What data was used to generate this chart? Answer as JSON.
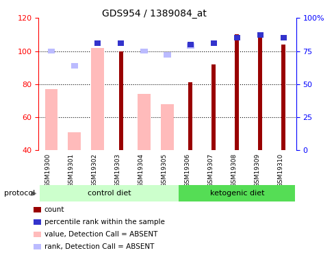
{
  "title": "GDS954 / 1389084_at",
  "samples": [
    "GSM19300",
    "GSM19301",
    "GSM19302",
    "GSM19303",
    "GSM19304",
    "GSM19305",
    "GSM19306",
    "GSM19307",
    "GSM19308",
    "GSM19309",
    "GSM19310"
  ],
  "count_values": [
    null,
    null,
    null,
    100,
    null,
    null,
    81,
    92,
    110,
    108,
    104
  ],
  "rank_values": [
    null,
    null,
    81,
    81,
    null,
    null,
    80,
    81,
    85,
    87,
    85
  ],
  "absent_value_values": [
    77,
    51,
    102,
    null,
    74,
    68,
    null,
    null,
    null,
    null,
    null
  ],
  "absent_rank_values": [
    75,
    64,
    null,
    null,
    75,
    72,
    79,
    null,
    null,
    null,
    null
  ],
  "ylim_left": [
    40,
    120
  ],
  "ylim_right": [
    0,
    100
  ],
  "yticks_left": [
    40,
    60,
    80,
    100,
    120
  ],
  "ytick_labels_left": [
    "40",
    "60",
    "80",
    "100",
    "120"
  ],
  "ytick_labels_right": [
    "0",
    "25",
    "50",
    "75",
    "100%"
  ],
  "color_count": "#990000",
  "color_rank": "#3333cc",
  "color_absent_value": "#ffbbbb",
  "color_absent_rank": "#bbbbff",
  "group_labels": [
    "control diet",
    "ketogenic diet"
  ],
  "control_indices": [
    0,
    1,
    2,
    3,
    4,
    5
  ],
  "ketogenic_indices": [
    6,
    7,
    8,
    9,
    10
  ],
  "legend_items": [
    {
      "label": "count",
      "color": "#990000"
    },
    {
      "label": "percentile rank within the sample",
      "color": "#3333cc"
    },
    {
      "label": "value, Detection Call = ABSENT",
      "color": "#ffbbbb"
    },
    {
      "label": "rank, Detection Call = ABSENT",
      "color": "#bbbbff"
    }
  ]
}
